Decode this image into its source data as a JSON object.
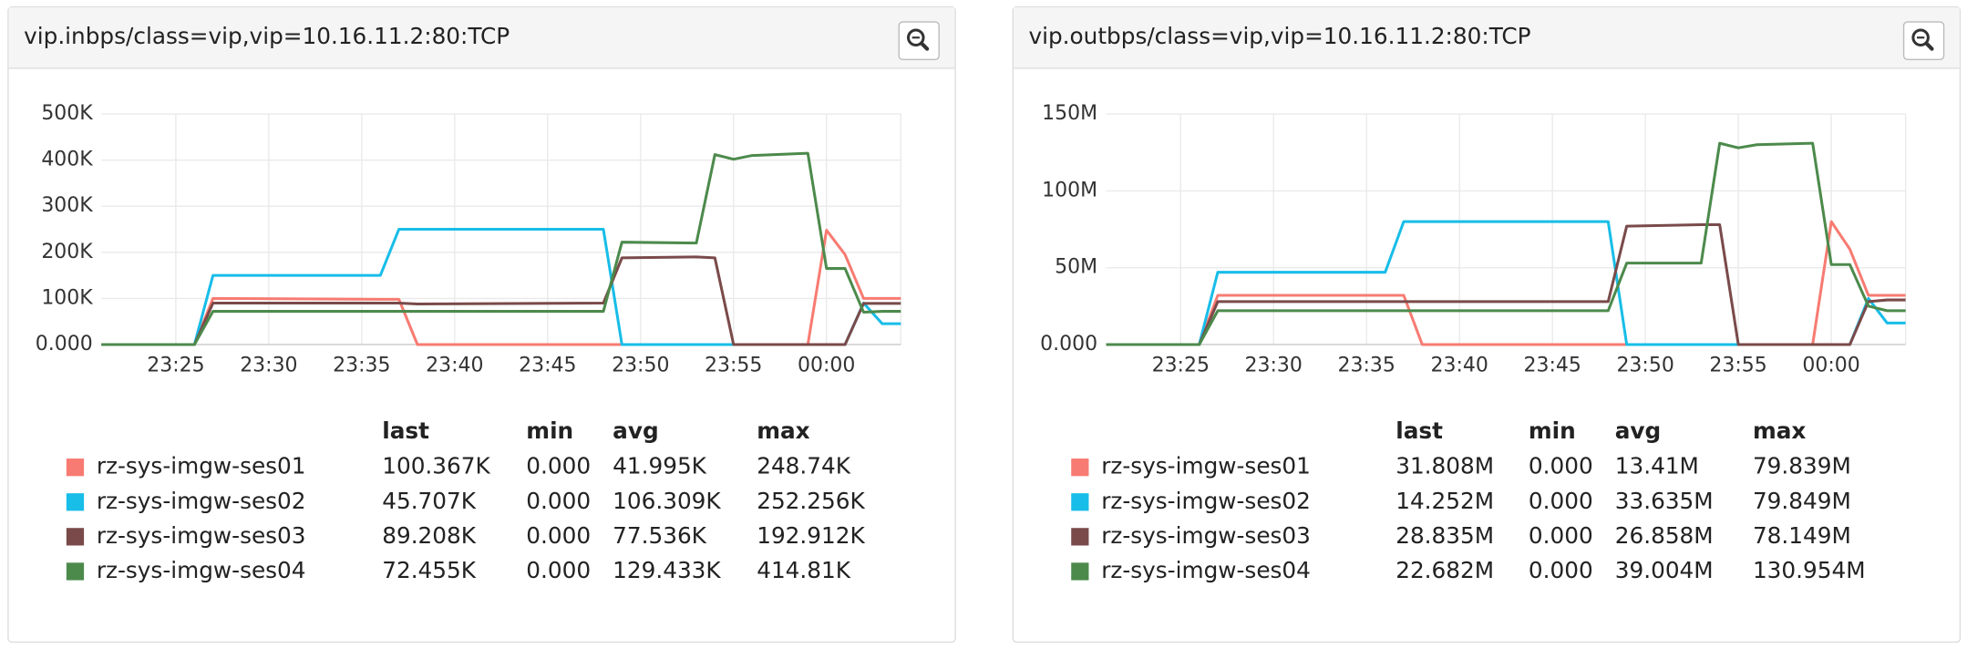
{
  "chart_data": [
    {
      "type": "line",
      "title": "vip.inbps/class=vip,vip=10.16.11.2:80:TCP",
      "x": [
        "23:21",
        "23:26",
        "23:27",
        "23:36",
        "23:37",
        "23:38",
        "23:48",
        "23:49",
        "23:53",
        "23:54",
        "23:55",
        "23:56",
        "23:59",
        "00:00",
        "00:01",
        "00:02",
        "00:03",
        "00:04"
      ],
      "xlim": [
        "23:21",
        "00:04"
      ],
      "xticks": [
        "23:25",
        "23:30",
        "23:35",
        "23:40",
        "23:45",
        "23:50",
        "23:55",
        "00:00"
      ],
      "ylim": [
        0,
        500000
      ],
      "yticks": [
        {
          "value": 0,
          "label": "0.000"
        },
        {
          "value": 100000,
          "label": "100K"
        },
        {
          "value": 200000,
          "label": "200K"
        },
        {
          "value": 300000,
          "label": "300K"
        },
        {
          "value": 400000,
          "label": "400K"
        },
        {
          "value": 500000,
          "label": "500K"
        }
      ],
      "grid": true,
      "series": [
        {
          "name": "rz-sys-imgw-ses01",
          "color": "#f77b72",
          "values": [
            0,
            0,
            100000,
            98000,
            98000,
            0,
            0,
            0,
            0,
            0,
            0,
            0,
            0,
            248000,
            195000,
            100000,
            100000,
            100000
          ]
        },
        {
          "name": "rz-sys-imgw-ses02",
          "color": "#18bde8",
          "values": [
            0,
            0,
            150000,
            150000,
            250000,
            250000,
            250000,
            0,
            0,
            0,
            0,
            0,
            0,
            0,
            0,
            90000,
            45000,
            45000
          ]
        },
        {
          "name": "rz-sys-imgw-ses03",
          "color": "#7a4a4a",
          "values": [
            0,
            0,
            90000,
            90000,
            90000,
            88000,
            90000,
            188000,
            190000,
            188000,
            0,
            0,
            0,
            0,
            0,
            89000,
            89000,
            89000
          ]
        },
        {
          "name": "rz-sys-imgw-ses04",
          "color": "#4c8a4c",
          "values": [
            0,
            0,
            72000,
            72000,
            72000,
            72000,
            72000,
            222000,
            220000,
            412000,
            402000,
            410000,
            415000,
            165000,
            165000,
            70000,
            72000,
            72000
          ]
        }
      ],
      "table": {
        "columns": [
          "last",
          "min",
          "avg",
          "max"
        ],
        "rows": [
          [
            "100.367K",
            "0.000",
            "41.995K",
            "248.74K"
          ],
          [
            "45.707K",
            "0.000",
            "106.309K",
            "252.256K"
          ],
          [
            "89.208K",
            "0.000",
            "77.536K",
            "192.912K"
          ],
          [
            "72.455K",
            "0.000",
            "129.433K",
            "414.81K"
          ]
        ]
      }
    },
    {
      "type": "line",
      "title": "vip.outbps/class=vip,vip=10.16.11.2:80:TCP",
      "x": [
        "23:21",
        "23:26",
        "23:27",
        "23:36",
        "23:37",
        "23:38",
        "23:48",
        "23:49",
        "23:53",
        "23:54",
        "23:55",
        "23:56",
        "23:59",
        "00:00",
        "00:01",
        "00:02",
        "00:03",
        "00:04"
      ],
      "xlim": [
        "23:21",
        "00:04"
      ],
      "xticks": [
        "23:25",
        "23:30",
        "23:35",
        "23:40",
        "23:45",
        "23:50",
        "23:55",
        "00:00"
      ],
      "ylim": [
        0,
        150000000
      ],
      "yticks": [
        {
          "value": 0,
          "label": "0.000"
        },
        {
          "value": 50000000,
          "label": "50M"
        },
        {
          "value": 100000000,
          "label": "100M"
        },
        {
          "value": 150000000,
          "label": "150M"
        }
      ],
      "grid": true,
      "series": [
        {
          "name": "rz-sys-imgw-ses01",
          "color": "#f77b72",
          "values": [
            0,
            0,
            32000000,
            32000000,
            32000000,
            0,
            0,
            0,
            0,
            0,
            0,
            0,
            0,
            80000000,
            62000000,
            32000000,
            32000000,
            32000000
          ]
        },
        {
          "name": "rz-sys-imgw-ses02",
          "color": "#18bde8",
          "values": [
            0,
            0,
            47000000,
            47000000,
            80000000,
            80000000,
            80000000,
            0,
            0,
            0,
            0,
            0,
            0,
            0,
            0,
            30000000,
            14000000,
            14000000
          ]
        },
        {
          "name": "rz-sys-imgw-ses03",
          "color": "#7a4a4a",
          "values": [
            0,
            0,
            28000000,
            28000000,
            28000000,
            28000000,
            28000000,
            77000000,
            78000000,
            78000000,
            0,
            0,
            0,
            0,
            0,
            28000000,
            29000000,
            29000000
          ]
        },
        {
          "name": "rz-sys-imgw-ses04",
          "color": "#4c8a4c",
          "values": [
            0,
            0,
            22000000,
            22000000,
            22000000,
            22000000,
            22000000,
            53000000,
            53000000,
            131000000,
            128000000,
            130000000,
            131000000,
            52000000,
            52000000,
            25000000,
            22000000,
            22000000
          ]
        }
      ],
      "table": {
        "columns": [
          "last",
          "min",
          "avg",
          "max"
        ],
        "rows": [
          [
            "31.808M",
            "0.000",
            "13.41M",
            "79.839M"
          ],
          [
            "14.252M",
            "0.000",
            "33.635M",
            "79.849M"
          ],
          [
            "28.835M",
            "0.000",
            "26.858M",
            "78.149M"
          ],
          [
            "22.682M",
            "0.000",
            "39.004M",
            "130.954M"
          ]
        ]
      }
    }
  ]
}
